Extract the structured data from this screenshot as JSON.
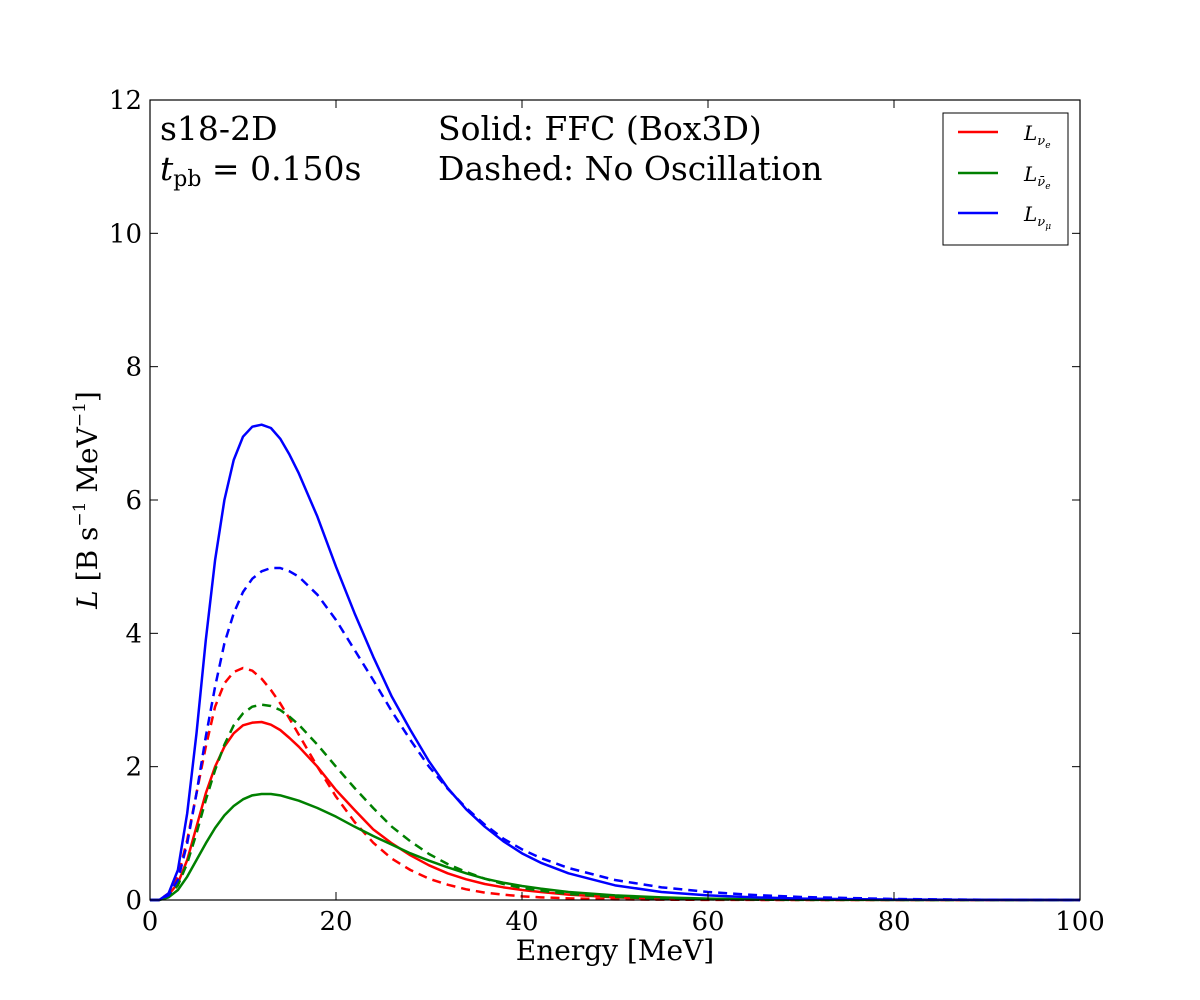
{
  "chart_data": {
    "type": "line",
    "title": "",
    "xlabel": "Energy [MeV]",
    "ylabel": "L [B s⁻¹ MeV⁻¹]",
    "ylabel_parts": {
      "var": "L",
      "units_open": " [B s",
      "exp1": "−1",
      "units_mid": " MeV",
      "exp2": "−1",
      "units_close": "]"
    },
    "xlim": [
      0,
      100
    ],
    "ylim": [
      0,
      12
    ],
    "xticks": [
      "0",
      "20",
      "40",
      "60",
      "80",
      "100"
    ],
    "yticks": [
      "0",
      "2",
      "4",
      "6",
      "8",
      "10",
      "12"
    ],
    "grid": false,
    "legend_position": "top-right",
    "annotations": {
      "model": "s18-2D",
      "time_symbol": "t",
      "time_subscript": "pb",
      "time_value": " = 0.150s",
      "solid_note": "Solid: FFC (Box3D)",
      "dashed_note": "Dashed: No Oscillation"
    },
    "x": [
      0,
      1,
      2,
      3,
      4,
      5,
      6,
      7,
      8,
      9,
      10,
      11,
      12,
      13,
      14,
      15,
      16,
      18,
      20,
      22,
      24,
      26,
      28,
      30,
      32,
      34,
      36,
      38,
      40,
      42,
      45,
      50,
      55,
      60,
      65,
      70,
      80,
      90,
      100
    ],
    "series": [
      {
        "name": "L_νe",
        "legend_main": "L",
        "legend_sub": "ν",
        "legend_subsub": "e",
        "color": "#ff0000",
        "style": "solid",
        "values": [
          0,
          0,
          0.08,
          0.25,
          0.6,
          1.1,
          1.6,
          2.0,
          2.3,
          2.5,
          2.62,
          2.66,
          2.67,
          2.63,
          2.55,
          2.43,
          2.3,
          2.0,
          1.65,
          1.35,
          1.06,
          0.85,
          0.67,
          0.52,
          0.4,
          0.31,
          0.24,
          0.19,
          0.15,
          0.12,
          0.08,
          0.04,
          0.02,
          0.012,
          0.007,
          0.004,
          0.001,
          0,
          0
        ]
      },
      {
        "name": "L_νe (no osc.)",
        "color": "#ff0000",
        "style": "dashed",
        "values": [
          0,
          0,
          0.1,
          0.35,
          0.9,
          1.6,
          2.3,
          2.9,
          3.25,
          3.42,
          3.48,
          3.44,
          3.32,
          3.15,
          2.95,
          2.72,
          2.48,
          2.0,
          1.55,
          1.17,
          0.86,
          0.62,
          0.45,
          0.32,
          0.23,
          0.16,
          0.11,
          0.08,
          0.055,
          0.04,
          0.025,
          0.01,
          0.005,
          0.002,
          0.001,
          0,
          0,
          0,
          0
        ]
      },
      {
        "name": "L_ν̄e",
        "legend_main": "L",
        "legend_sub": "ν̄",
        "legend_subsub": "e",
        "color": "#008000",
        "style": "solid",
        "values": [
          0,
          0,
          0.04,
          0.15,
          0.35,
          0.6,
          0.85,
          1.08,
          1.27,
          1.41,
          1.51,
          1.57,
          1.59,
          1.59,
          1.57,
          1.53,
          1.49,
          1.38,
          1.25,
          1.1,
          0.96,
          0.83,
          0.7,
          0.59,
          0.49,
          0.4,
          0.32,
          0.26,
          0.21,
          0.17,
          0.12,
          0.07,
          0.04,
          0.02,
          0.012,
          0.007,
          0.002,
          0.001,
          0
        ]
      },
      {
        "name": "L_ν̄e (no osc.)",
        "color": "#008000",
        "style": "dashed",
        "values": [
          0,
          0,
          0.06,
          0.22,
          0.55,
          1.0,
          1.5,
          1.95,
          2.33,
          2.62,
          2.8,
          2.9,
          2.93,
          2.91,
          2.85,
          2.75,
          2.63,
          2.33,
          2.0,
          1.68,
          1.38,
          1.1,
          0.88,
          0.69,
          0.54,
          0.42,
          0.32,
          0.24,
          0.18,
          0.14,
          0.09,
          0.045,
          0.022,
          0.011,
          0.005,
          0.002,
          0.001,
          0,
          0
        ]
      },
      {
        "name": "L_νμ",
        "legend_main": "L",
        "legend_sub": "ν",
        "legend_subsub": "μ",
        "color": "#0000ff",
        "style": "solid",
        "values": [
          0,
          0,
          0.1,
          0.45,
          1.3,
          2.5,
          3.9,
          5.1,
          6.0,
          6.6,
          6.95,
          7.1,
          7.13,
          7.08,
          6.92,
          6.68,
          6.4,
          5.75,
          5.0,
          4.3,
          3.65,
          3.05,
          2.55,
          2.08,
          1.68,
          1.36,
          1.1,
          0.88,
          0.7,
          0.56,
          0.4,
          0.22,
          0.12,
          0.07,
          0.04,
          0.02,
          0.007,
          0.002,
          0
        ]
      },
      {
        "name": "L_νμ (no osc.)",
        "color": "#0000ff",
        "style": "dashed",
        "values": [
          0,
          0,
          0.07,
          0.3,
          0.85,
          1.6,
          2.45,
          3.2,
          3.85,
          4.3,
          4.62,
          4.82,
          4.93,
          4.98,
          4.98,
          4.93,
          4.85,
          4.58,
          4.2,
          3.75,
          3.3,
          2.83,
          2.4,
          2.0,
          1.67,
          1.38,
          1.13,
          0.92,
          0.76,
          0.63,
          0.48,
          0.3,
          0.19,
          0.12,
          0.075,
          0.045,
          0.015,
          0.004,
          0
        ]
      }
    ]
  }
}
